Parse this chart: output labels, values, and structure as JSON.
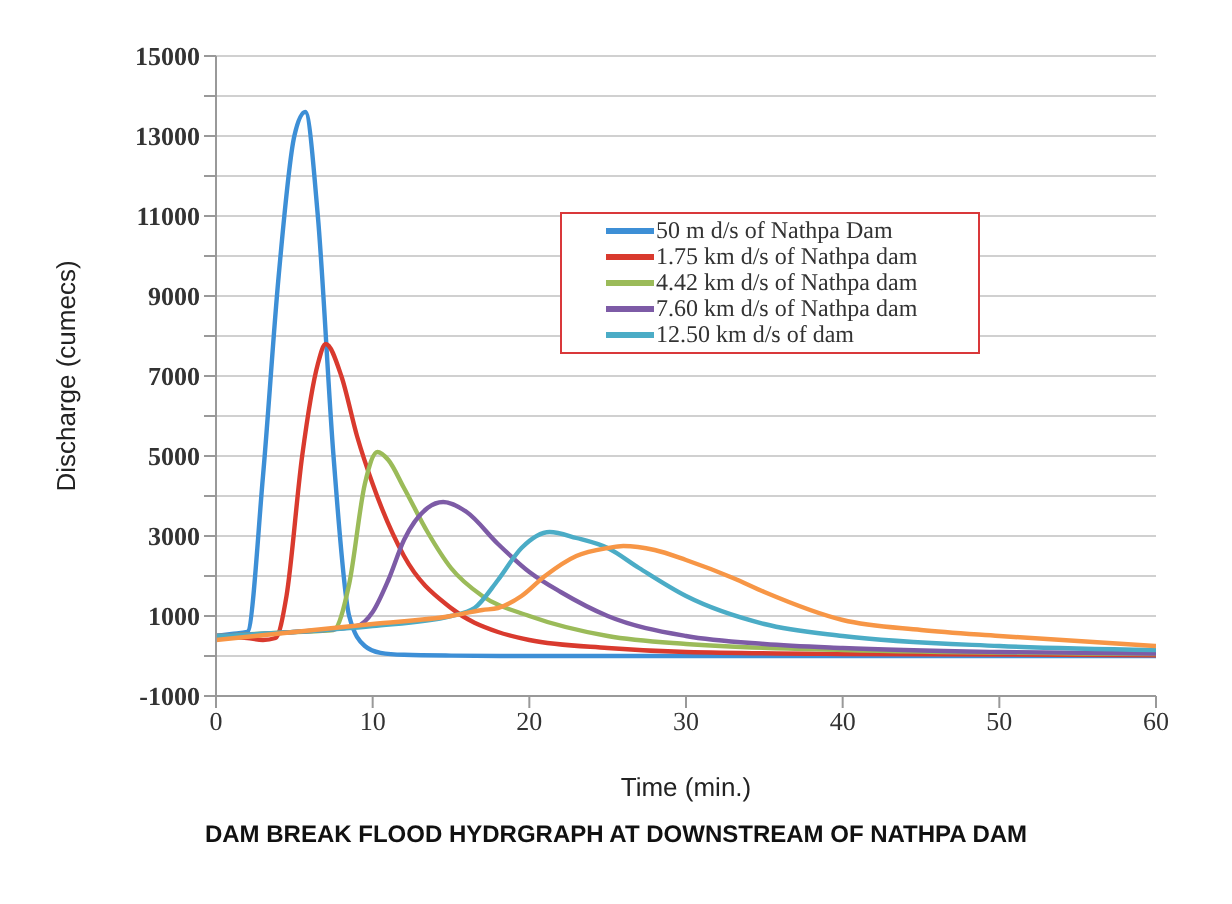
{
  "chart_data": {
    "type": "line",
    "title": "DAM BREAK FLOOD HYDRGRAPH AT DOWNSTREAM OF NATHPA DAM",
    "xlabel": "Time (min.)",
    "ylabel": "Discharge (cumecs)",
    "xlim": [
      0,
      60
    ],
    "xticks": [
      0,
      10,
      20,
      30,
      40,
      50,
      60
    ],
    "ylim": [
      -1000,
      15000
    ],
    "yticks": [
      -1000,
      {
        "value": 0,
        "label": null
      },
      1000,
      {
        "value": 2000,
        "label": null
      },
      3000,
      {
        "value": 4000,
        "label": null
      },
      5000,
      {
        "value": 6000,
        "label": null
      },
      7000,
      {
        "value": 8000,
        "label": null
      },
      9000,
      {
        "value": 10000,
        "label": null
      },
      11000,
      {
        "value": 12000,
        "label": null
      },
      13000,
      {
        "value": 14000,
        "label": null
      },
      15000
    ],
    "grid": "y",
    "legend": "top right",
    "marker": "none",
    "line_style": "solid",
    "series": [
      {
        "name": "50 m d/s of Nathpa Dam",
        "color": "#3d8fd6",
        "x": [
          0,
          1,
          2,
          3,
          4,
          5,
          5.7,
          6.5,
          7.5,
          8.5,
          9.5,
          10.5,
          12,
          15,
          20,
          30,
          40,
          60
        ],
        "values": [
          500,
          550,
          600,
          4500,
          9500,
          13000,
          13600,
          11000,
          5000,
          1000,
          250,
          80,
          30,
          10,
          0,
          0,
          0,
          0
        ]
      },
      {
        "name": "1.75 km d/s of Nathpa dam",
        "color": "#d93a2e",
        "x": [
          0,
          2,
          3,
          3.8,
          4.5,
          5.5,
          6.5,
          7,
          8,
          9,
          10,
          12,
          15,
          18,
          20,
          25,
          30,
          40,
          60
        ],
        "values": [
          500,
          450,
          400,
          450,
          1500,
          5000,
          7300,
          7800,
          7000,
          5500,
          4300,
          2500,
          1200,
          600,
          400,
          200,
          100,
          50,
          20
        ]
      },
      {
        "name": "4.42 km d/s of Nathpa dam",
        "color": "#9bbb59",
        "x": [
          0,
          5,
          7.5,
          8.5,
          9.5,
          10.3,
          11,
          12,
          13.5,
          15,
          17,
          20,
          25,
          30,
          40,
          60
        ],
        "values": [
          500,
          600,
          650,
          1800,
          4300,
          5100,
          4900,
          4200,
          3100,
          2200,
          1500,
          1000,
          500,
          300,
          150,
          50
        ]
      },
      {
        "name": "7.60 km d/s of Nathpa dam",
        "color": "#7d5ba6",
        "x": [
          0,
          5,
          9,
          10,
          11,
          12,
          13.5,
          14.5,
          16,
          18,
          20,
          22,
          25,
          30,
          35,
          40,
          50,
          60
        ],
        "values": [
          500,
          600,
          750,
          1100,
          1900,
          2900,
          3700,
          3850,
          3600,
          2800,
          2100,
          1600,
          1000,
          500,
          300,
          200,
          100,
          60
        ]
      },
      {
        "name": "12.50 km d/s of dam",
        "color": "#4bacc6",
        "x": [
          0,
          5,
          10,
          15,
          16.5,
          18,
          19.5,
          21.3,
          23,
          25,
          27,
          30,
          35,
          40,
          50,
          60
        ],
        "values": [
          500,
          600,
          750,
          1000,
          1200,
          1900,
          2700,
          3100,
          2950,
          2700,
          2200,
          1500,
          800,
          500,
          250,
          150
        ]
      },
      {
        "color": "#f79646",
        "x": [
          0,
          5,
          10,
          15,
          17,
          18,
          19.5,
          21,
          23,
          25,
          26,
          28,
          30,
          33,
          35,
          40,
          45,
          50,
          60
        ],
        "values": [
          400,
          600,
          800,
          1000,
          1150,
          1200,
          1500,
          2000,
          2500,
          2700,
          2750,
          2650,
          2400,
          1950,
          1600,
          900,
          650,
          500,
          250
        ]
      }
    ]
  }
}
